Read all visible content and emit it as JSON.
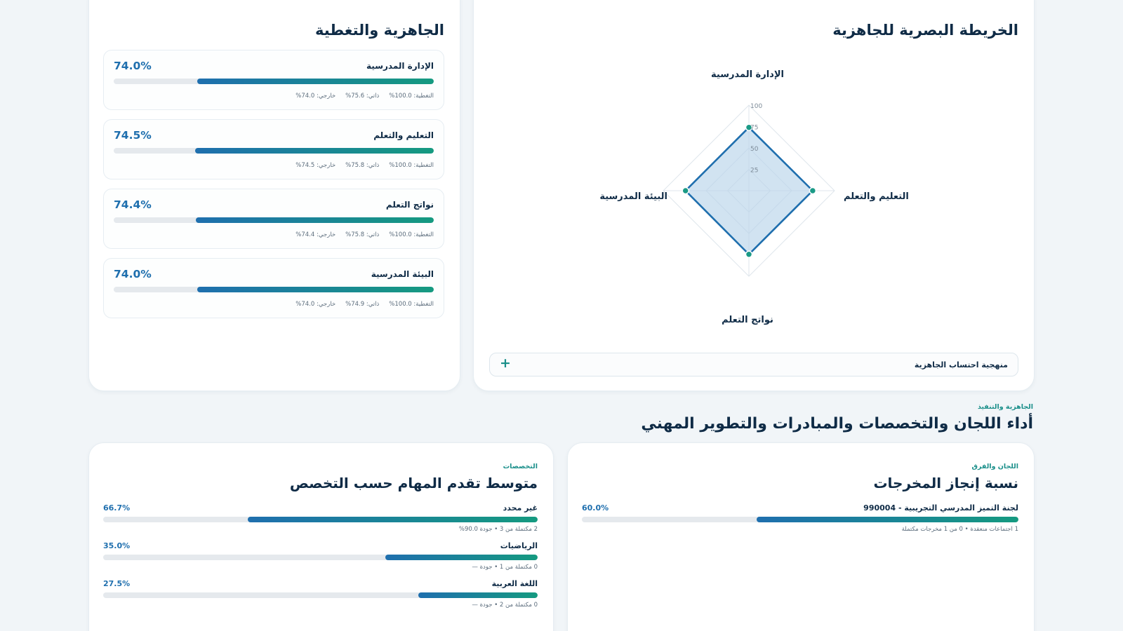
{
  "readiness": {
    "title": "الجاهزية والتغطية",
    "items": [
      {
        "name": "الإدارة المدرسية",
        "pct_label": "74.0%",
        "value": 74.0,
        "coverage": "التغطية: 100.0%",
        "self": "ذاتي: 75.6%",
        "external": "خارجي: 74.0%"
      },
      {
        "name": "التعليم والتعلم",
        "pct_label": "74.5%",
        "value": 74.5,
        "coverage": "التغطية: 100.0%",
        "self": "ذاتي: 75.8%",
        "external": "خارجي: 74.5%"
      },
      {
        "name": "نواتج التعلم",
        "pct_label": "74.4%",
        "value": 74.4,
        "coverage": "التغطية: 100.0%",
        "self": "ذاتي: 75.8%",
        "external": "خارجي: 74.4%"
      },
      {
        "name": "البيئة المدرسية",
        "pct_label": "74.0%",
        "value": 74.0,
        "coverage": "التغطية: 100.0%",
        "self": "ذاتي: 74.9%",
        "external": "خارجي: 74.0%"
      }
    ]
  },
  "radar": {
    "title": "الخريطة البصرية للجاهزية",
    "axes": [
      "الإدارة المدرسية",
      "التعليم والتعلم",
      "نواتج التعلم",
      "البيئة المدرسية"
    ],
    "values": [
      74.0,
      74.5,
      74.4,
      74.0
    ],
    "ticks": [
      "100",
      "75",
      "50",
      "25"
    ],
    "range": [
      0,
      100
    ],
    "methodology_label": "منهجية احتساب الجاهزية",
    "expand_glyph": "+"
  },
  "section": {
    "eyebrow": "الجاهزية والتنفيذ",
    "title": "أداء اللجان والتخصصات والمبادرات والتطوير المهني"
  },
  "committees": {
    "eyebrow": "اللجان والفرق",
    "title": "نسبة إنجاز المخرجات",
    "items": [
      {
        "name": "لجنة التميز المدرسي التجريبية - 990004",
        "pct_label": "60.0%",
        "value": 60.0,
        "meta": "1 اجتماعات منعقدة • 0 من 1 مخرجات مكتملة"
      }
    ]
  },
  "specialties": {
    "eyebrow": "التخصصات",
    "title": "متوسط تقدم المهام حسب التخصص",
    "items": [
      {
        "name": "غير محدد",
        "pct_label": "66.7%",
        "value": 66.7,
        "meta": "2 مكتملة من 3 • جودة 90.0%"
      },
      {
        "name": "الرياضيات",
        "pct_label": "35.0%",
        "value": 35.0,
        "meta": "0 مكتملة من 1 • جودة —"
      },
      {
        "name": "اللغة العربية",
        "pct_label": "27.5%",
        "value": 27.5,
        "meta": "0 مكتملة من 2 • جودة —"
      }
    ]
  },
  "colors": {
    "accent_blue": "#1f6fae",
    "accent_teal": "#159a80",
    "radar_fill": "#b9d4ea"
  }
}
